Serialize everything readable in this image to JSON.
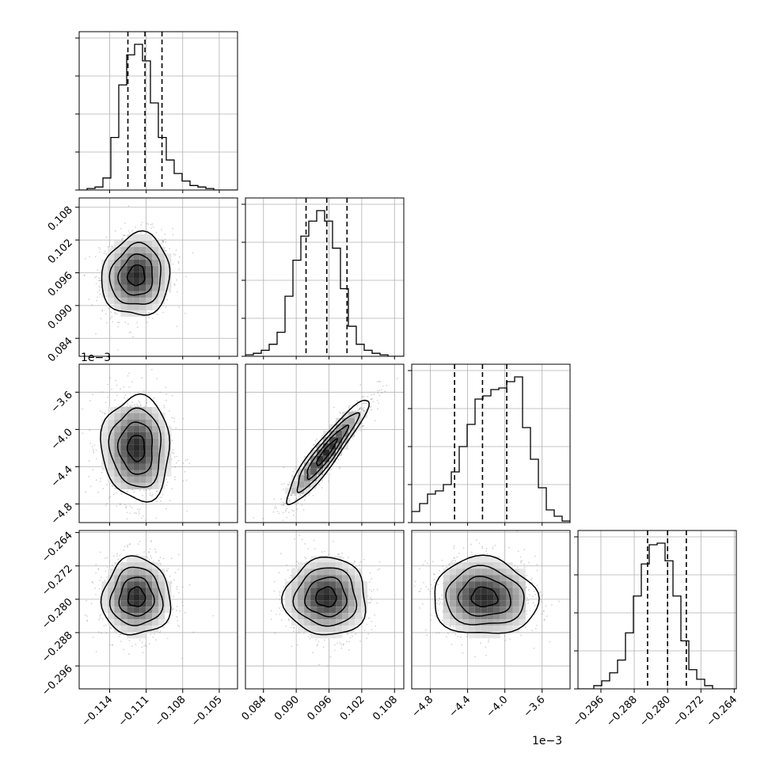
{
  "chart_data": {
    "type": "corner",
    "parameters": [
      {
        "range": [
          -0.1165,
          -0.1035
        ],
        "ticks": [
          -0.114,
          -0.111,
          -0.108,
          -0.105
        ],
        "tick_labels": [
          "−0.114",
          "−0.111",
          "−0.108",
          "−0.105"
        ],
        "offset_label": "",
        "hist": {
          "edges_start": -0.1165,
          "bin_width": 0.00065,
          "counts": [
            0,
            1,
            2,
            8,
            35,
            70,
            90,
            97,
            86,
            58,
            35,
            20,
            11,
            6,
            3,
            2,
            1,
            0,
            0,
            0
          ],
          "quantiles": [
            -0.1125,
            -0.1111,
            -0.1097
          ]
        }
      },
      {
        "range": [
          0.0807,
          0.1097
        ],
        "ticks": [
          0.084,
          0.09,
          0.096,
          0.102,
          0.108
        ],
        "tick_labels": [
          "0.084",
          "0.090",
          "0.096",
          "0.102",
          "0.108"
        ],
        "offset_label": "",
        "hist": {
          "edges_start": 0.0807,
          "bin_width": 0.00145,
          "counts": [
            1,
            2,
            4,
            8,
            16,
            40,
            64,
            80,
            90,
            97,
            90,
            72,
            45,
            20,
            8,
            4,
            2,
            1,
            0,
            0
          ],
          "quantiles": [
            0.0918,
            0.0956,
            0.0993
          ]
        }
      },
      {
        "range": [
          -5.0,
          -3.3
        ],
        "ticks": [
          -4.8,
          -4.4,
          -4.0,
          -3.6
        ],
        "tick_labels": [
          "−4.8",
          "−4.4",
          "−4.0",
          "−3.6"
        ],
        "offset_label": "1e−3",
        "hist": {
          "edges_start": -5.0,
          "bin_width": 0.085,
          "counts": [
            7,
            12,
            18,
            20,
            24,
            32,
            48,
            62,
            78,
            80,
            84,
            85,
            89,
            92,
            60,
            40,
            22,
            8,
            4,
            1
          ],
          "quantiles": [
            -4.54,
            -4.24,
            -3.98
          ]
        }
      },
      {
        "range": [
          -0.3015,
          -0.2635
        ],
        "ticks": [
          -0.296,
          -0.288,
          -0.28,
          -0.272,
          -0.264
        ],
        "tick_labels": [
          "−0.296",
          "−0.288",
          "−0.280",
          "−0.272",
          "−0.264"
        ],
        "offset_label": "",
        "hist": {
          "edges_start": -0.3015,
          "bin_width": 0.0019,
          "counts": [
            0,
            0,
            2,
            5,
            10,
            18,
            35,
            58,
            78,
            90,
            91,
            80,
            58,
            30,
            12,
            6,
            2,
            0,
            0,
            0
          ],
          "quantiles": [
            -0.2848,
            -0.28,
            -0.2755
          ]
        }
      }
    ],
    "pairs": [
      {
        "row": 1,
        "col": 0,
        "mean": [
          -0.1118,
          0.0955
        ],
        "corr": 0.08,
        "tilt": -8
      },
      {
        "row": 2,
        "col": 0,
        "mean": [
          -0.1118,
          -4.2
        ],
        "corr": -0.05,
        "tilt": 0
      },
      {
        "row": 2,
        "col": 1,
        "mean": [
          0.0955,
          -4.25
        ],
        "corr": 0.93,
        "tilt": 0
      },
      {
        "row": 3,
        "col": 0,
        "mean": [
          -0.1118,
          -0.2795
        ],
        "corr": 0.0,
        "tilt": 0
      },
      {
        "row": 3,
        "col": 1,
        "mean": [
          0.0955,
          -0.2795
        ],
        "corr": 0.0,
        "tilt": 0
      },
      {
        "row": 3,
        "col": 2,
        "mean": [
          -4.22,
          -0.2795
        ],
        "corr": -0.05,
        "tilt": 0
      }
    ],
    "contour_levels": [
      "0.5σ",
      "1σ",
      "1.5σ",
      "2σ"
    ],
    "grid": true,
    "colors": {
      "hist": "#000000",
      "quantile_line": "#000000",
      "density_dark": "#000000",
      "scatter": "#808080",
      "grid": "#b0b0b0"
    }
  }
}
